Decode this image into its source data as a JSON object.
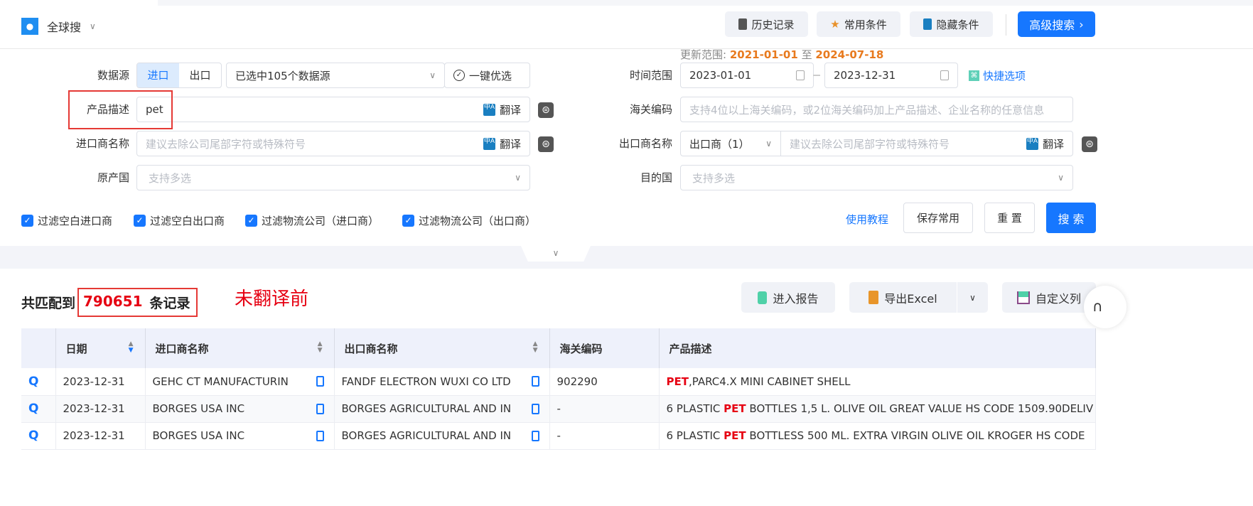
{
  "header": {
    "scope_label": "全球搜",
    "buttons": {
      "history": "历史记录",
      "favorites": "常用条件",
      "hide": "隐藏条件",
      "advanced": "高级搜索"
    }
  },
  "form": {
    "update_range_label": "更新范围:",
    "update_from": "2021-01-01",
    "update_to_sep": "至",
    "update_to": "2024-07-18",
    "data_source": {
      "label": "数据源",
      "options": [
        "进口",
        "出口"
      ],
      "selected": "进口",
      "select_value": "已选中105个数据源",
      "optimize": "一键优选"
    },
    "product_desc": {
      "label": "产品描述",
      "value": "pet",
      "translate": "翻译"
    },
    "importer": {
      "label": "进口商名称",
      "placeholder": "建议去除公司尾部字符或特殊符号",
      "translate": "翻译"
    },
    "origin": {
      "label": "原产国",
      "placeholder": "支持多选"
    },
    "time_range": {
      "label": "时间范围",
      "from": "2023-01-01",
      "to": "2023-12-31",
      "quick": "快捷选项"
    },
    "hs_code": {
      "label": "海关编码",
      "placeholder": "支持4位以上海关编码，或2位海关编码加上产品描述、企业名称的任意信息"
    },
    "exporter": {
      "label": "出口商名称",
      "type_value": "出口商（1）",
      "placeholder": "建议去除公司尾部字符或特殊符号",
      "translate": "翻译"
    },
    "destination": {
      "label": "目的国",
      "placeholder": "支持多选"
    },
    "filters": [
      "过滤空白进口商",
      "过滤空白出口商",
      "过滤物流公司（进口商）",
      "过滤物流公司（出口商）"
    ],
    "tutorial": "使用教程",
    "save": "保存常用",
    "reset": "重 置",
    "search": "搜 索"
  },
  "results": {
    "prefix": "共匹配到",
    "count": "790651",
    "suffix": "条记录",
    "annotation": "未翻译前",
    "buttons": {
      "report": "进入报告",
      "export": "导出Excel",
      "columns": "自定义列"
    },
    "columns": [
      "日期",
      "进口商名称",
      "出口商名称",
      "海关编码",
      "产品描述"
    ],
    "rows": [
      {
        "date": "2023-12-31",
        "importer": "GEHC CT MANUFACTURIN",
        "exporter": "FANDF ELECTRON WUXI CO LTD",
        "hs": "902290",
        "desc_pre": "",
        "desc_hl": "PET",
        "desc_post": ",PARC4.X MINI CABINET SHELL"
      },
      {
        "date": "2023-12-31",
        "importer": "BORGES USA INC",
        "exporter": "BORGES AGRICULTURAL AND IN",
        "hs": "-",
        "desc_pre": "6 PLASTIC ",
        "desc_hl": "PET",
        "desc_post": " BOTTLES 1,5 L. OLIVE OIL GREAT VALUE HS CODE 1509.90DELIV"
      },
      {
        "date": "2023-12-31",
        "importer": "BORGES USA INC",
        "exporter": "BORGES AGRICULTURAL AND IN",
        "hs": "-",
        "desc_pre": "6 PLASTIC ",
        "desc_hl": "PET",
        "desc_post": " BOTTLESS 500 ML. EXTRA VIRGIN OLIVE OIL KROGER HS CODE"
      }
    ]
  },
  "colors": {
    "primary": "#1677ff",
    "highlight": "#e60012",
    "update_date": "#e87a1e"
  }
}
